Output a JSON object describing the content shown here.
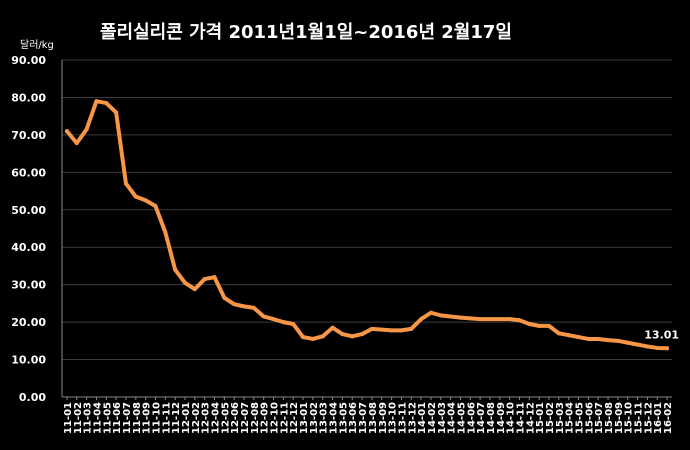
{
  "chart_data": {
    "type": "line",
    "title": "폴리실리콘  가격    2011년1월1일~2016년 2월17일",
    "ylabel": "달러/kg",
    "ylim": [
      0,
      90
    ],
    "yticks": [
      "0.00",
      "10.00",
      "20.00",
      "30.00",
      "40.00",
      "50.00",
      "60.00",
      "70.00",
      "80.00",
      "90.00"
    ],
    "grid": true,
    "legend": "none",
    "categories": [
      "11-01",
      "11-02",
      "11-03",
      "11-04",
      "11-05",
      "11-06",
      "11-07",
      "11-08",
      "11-09",
      "11-10",
      "11-11",
      "11-12",
      "12-01",
      "12-02",
      "12-03",
      "12-04",
      "12-05",
      "12-06",
      "12-07",
      "12-08",
      "12-09",
      "12-10",
      "12-11",
      "12-12",
      "13-01",
      "13-02",
      "13-03",
      "13-04",
      "13-05",
      "13-06",
      "13-07",
      "13-08",
      "13-09",
      "13-10",
      "13-11",
      "13-12",
      "14-01",
      "14-02",
      "14-03",
      "14-04",
      "14-05",
      "14-06",
      "14-07",
      "14-08",
      "14-09",
      "14-10",
      "14-11",
      "14-12",
      "15-01",
      "15-02",
      "15-03",
      "15-04",
      "15-05",
      "15-06",
      "15-07",
      "15-08",
      "15-09",
      "15-10",
      "15-11",
      "15-12",
      "16-01",
      "16-02"
    ],
    "series": [
      {
        "color": "#f79646",
        "values": [
          71.0,
          67.8,
          71.5,
          79.0,
          78.5,
          76.0,
          57.0,
          53.5,
          52.5,
          51.0,
          44.0,
          34.0,
          30.5,
          28.8,
          31.5,
          32.0,
          26.5,
          24.8,
          24.2,
          23.8,
          21.5,
          20.8,
          20.0,
          19.5,
          16.0,
          15.5,
          16.2,
          18.5,
          16.8,
          16.2,
          16.8,
          18.2,
          18.0,
          17.8,
          17.8,
          18.2,
          20.8,
          22.5,
          21.8,
          21.5,
          21.2,
          21.0,
          20.8,
          20.8,
          20.8,
          20.8,
          20.5,
          19.5,
          19.0,
          19.0,
          17.0,
          16.5,
          16.0,
          15.5,
          15.5,
          15.2,
          15.0,
          14.5,
          14.0,
          13.5,
          13.1,
          13.01
        ]
      }
    ],
    "data_labels": [
      "13.01"
    ]
  }
}
